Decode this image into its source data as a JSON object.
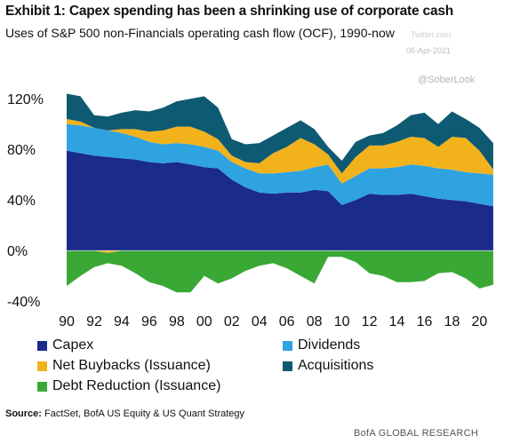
{
  "header": {
    "title": "Exhibit 1: Capex spending has been a shrinking use of corporate cash",
    "subtitle": "Uses of S&P 500 non-Financials operating cash flow (OCF), 1990-now"
  },
  "watermarks": {
    "mark1": "Twitter.com",
    "mark2": "06-Apr-2021",
    "mark3": "@SoberLook"
  },
  "source": {
    "label": "Source:",
    "text": "FactSet, BofA US Equity & US Quant Strategy"
  },
  "footer": "BofA GLOBAL RESEARCH",
  "legend": [
    {
      "name": "Capex",
      "color": "#1a2b8c"
    },
    {
      "name": "Dividends",
      "color": "#2fa3e0"
    },
    {
      "name": "Net Buybacks (Issuance)",
      "color": "#f2b21c"
    },
    {
      "name": "Acquisitions",
      "color": "#0e5a73"
    },
    {
      "name": "Debt Reduction (Issuance)",
      "color": "#3aa835"
    }
  ],
  "chart_data": {
    "type": "area",
    "title": "Exhibit 1: Capex spending has been a shrinking use of corporate cash",
    "subtitle": "Uses of S&P 500 non-Financials operating cash flow (OCF), 1990-now",
    "x": [
      1990,
      1991,
      1992,
      1993,
      1994,
      1995,
      1996,
      1997,
      1998,
      1999,
      2000,
      2001,
      2002,
      2003,
      2004,
      2005,
      2006,
      2007,
      2008,
      2009,
      2010,
      2011,
      2012,
      2013,
      2014,
      2015,
      2016,
      2017,
      2018,
      2019,
      2020,
      2021
    ],
    "xtick_labels": [
      "90",
      "92",
      "94",
      "96",
      "98",
      "00",
      "02",
      "04",
      "06",
      "08",
      "10",
      "12",
      "14",
      "16",
      "18",
      "20"
    ],
    "xtick_years": [
      1990,
      1992,
      1994,
      1996,
      1998,
      2000,
      2002,
      2004,
      2006,
      2008,
      2010,
      2012,
      2014,
      2016,
      2018,
      2020
    ],
    "ytick_labels": [
      "120%",
      "80%",
      "40%",
      "0%",
      "-40%"
    ],
    "ytick_values": [
      120,
      80,
      40,
      0,
      -40
    ],
    "ylim": [
      -42,
      130
    ],
    "xlim": [
      1990,
      2021.2
    ],
    "grid": false,
    "legend_position": "bottom",
    "series": [
      {
        "name": "Capex",
        "values": [
          79,
          77,
          75,
          74,
          73,
          72,
          70,
          69,
          70,
          68,
          66,
          65,
          56,
          50,
          46,
          45,
          46,
          46,
          48,
          47,
          36,
          40,
          45,
          44,
          44,
          45,
          43,
          41,
          40,
          39,
          37,
          35
        ]
      },
      {
        "name": "Dividends",
        "values": [
          21,
          22,
          22,
          21,
          20,
          18,
          16,
          15,
          15,
          16,
          16,
          14,
          14,
          15,
          15,
          16,
          16,
          17,
          18,
          21,
          17,
          19,
          20,
          21,
          22,
          23,
          24,
          24,
          24,
          23,
          24,
          25
        ]
      },
      {
        "name": "Net Buybacks (Issuance)",
        "values": [
          4,
          3,
          0,
          -2,
          3,
          6,
          8,
          11,
          13,
          14,
          12,
          9,
          5,
          5,
          8,
          16,
          20,
          26,
          18,
          8,
          8,
          15,
          18,
          18,
          20,
          22,
          22,
          17,
          26,
          27,
          18,
          4
        ]
      },
      {
        "name": "Acquisitions",
        "values": [
          20,
          20,
          10,
          11,
          13,
          15,
          16,
          18,
          20,
          22,
          28,
          25,
          13,
          14,
          16,
          14,
          15,
          14,
          12,
          6,
          10,
          12,
          8,
          10,
          13,
          17,
          20,
          18,
          20,
          15,
          18,
          21
        ]
      },
      {
        "name": "Debt Reduction (Issuance)",
        "values": [
          -28,
          -20,
          -13,
          -8,
          -12,
          -18,
          -25,
          -28,
          -33,
          -33,
          -20,
          -26,
          -22,
          -16,
          -12,
          -10,
          -14,
          -20,
          -26,
          -5,
          -5,
          -9,
          -18,
          -20,
          -25,
          -25,
          -24,
          -18,
          -17,
          -22,
          -30,
          -27
        ]
      }
    ]
  }
}
